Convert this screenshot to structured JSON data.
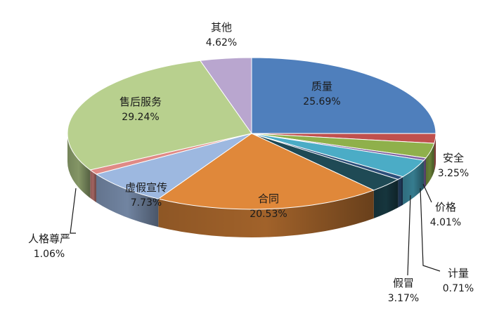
{
  "chart_data": {
    "type": "pie",
    "title": "",
    "legend": "none",
    "start_angle_deg": -90,
    "direction": "clockwise",
    "slices": [
      {
        "name": "质量",
        "pct_label": "25.69%",
        "value": 25.69,
        "color": "#4f7fbc",
        "label_placement": "inside"
      },
      {
        "name": "",
        "pct_label": "",
        "value": 2.1,
        "color": "#c0504d",
        "label_placement": "none"
      },
      {
        "name": "安全",
        "pct_label": "3.25%",
        "value": 3.25,
        "color": "#8fb04b",
        "label_placement": "outside"
      },
      {
        "name": "",
        "pct_label": "",
        "value": 0.55,
        "color": "#8064a2",
        "label_placement": "none"
      },
      {
        "name": "价格",
        "pct_label": "4.01%",
        "value": 4.01,
        "color": "#4bacc6",
        "label_placement": "outside"
      },
      {
        "name": "计量",
        "pct_label": "0.71%",
        "value": 0.71,
        "color": "#2d4f7a",
        "label_placement": "outside"
      },
      {
        "name": "假冒",
        "pct_label": "3.17%",
        "value": 3.17,
        "color": "#1f4a55",
        "label_placement": "outside"
      },
      {
        "name": "合同",
        "pct_label": "20.53%",
        "value": 20.53,
        "color": "#e0883a",
        "label_placement": "inside"
      },
      {
        "name": "虚假宣传",
        "pct_label": "7.73%",
        "value": 7.73,
        "color": "#9db8e0",
        "label_placement": "inside"
      },
      {
        "name": "人格尊严",
        "pct_label": "1.06%",
        "value": 1.06,
        "color": "#e08a86",
        "label_placement": "outside"
      },
      {
        "name": "售后服务",
        "pct_label": "29.24%",
        "value": 29.24,
        "color": "#b8d08e",
        "label_placement": "inside"
      },
      {
        "name": "其他",
        "pct_label": "4.62%",
        "value": 4.62,
        "color": "#b9a6cf",
        "label_placement": "outside"
      }
    ]
  }
}
